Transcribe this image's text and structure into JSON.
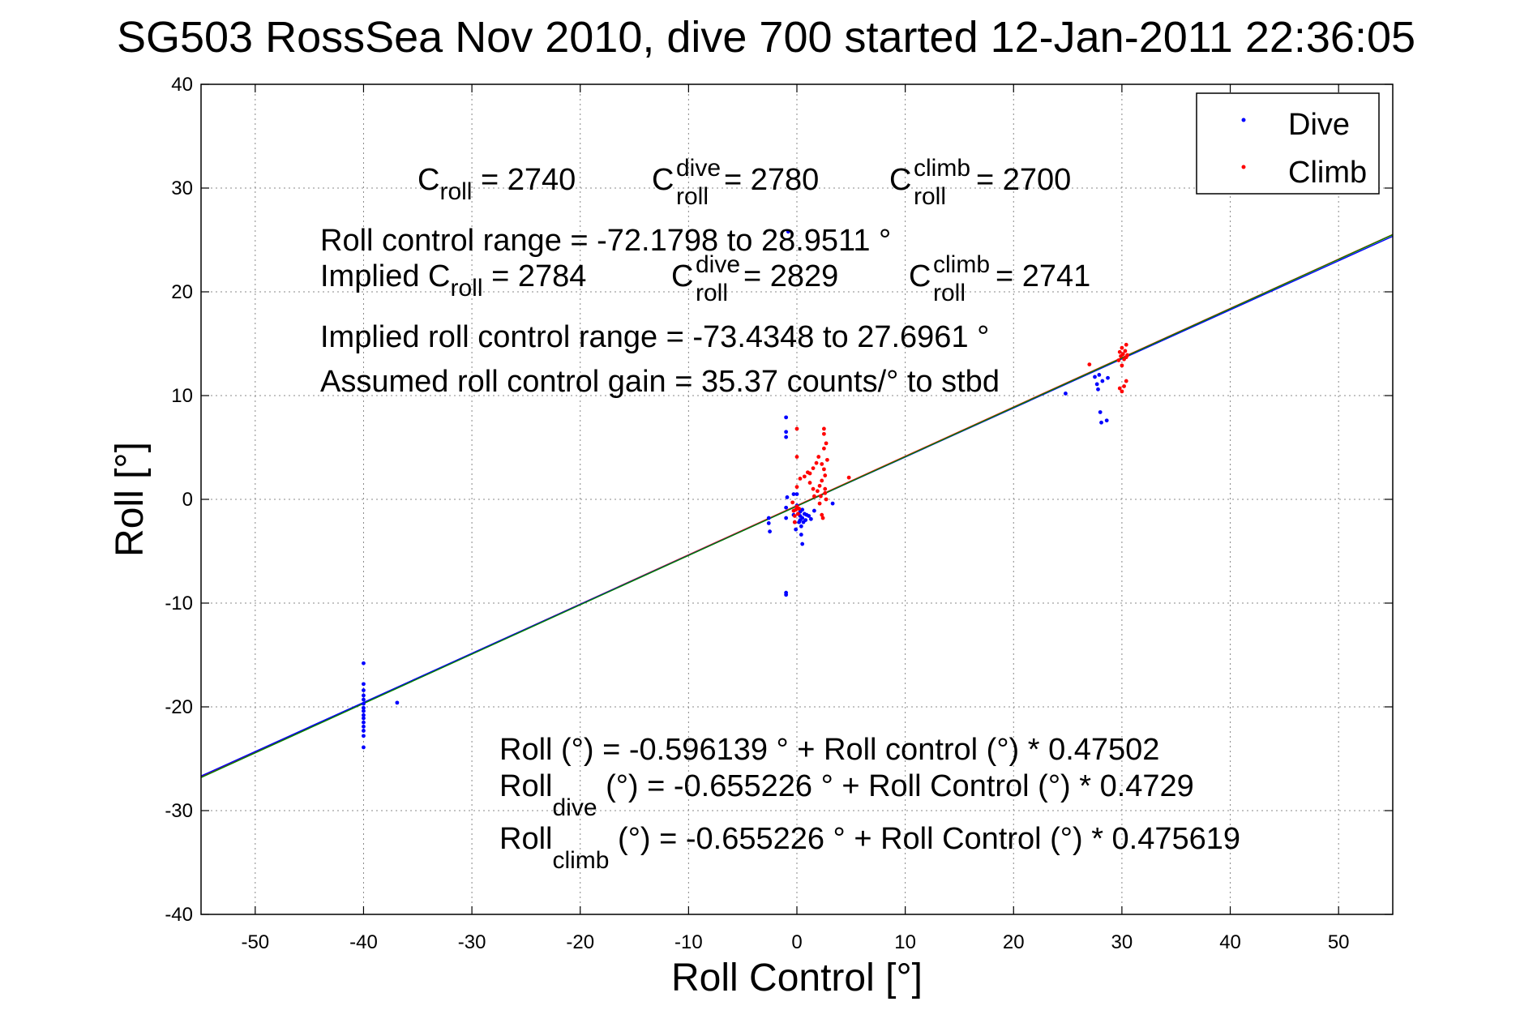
{
  "chart_data": {
    "type": "scatter",
    "title": "SG503 RossSea Nov 2010, dive 700 started 12-Jan-2011 22:36:05",
    "xlabel": "Roll Control [°]",
    "ylabel": "Roll [°]",
    "xlim": [
      -55,
      55
    ],
    "ylim": [
      -40,
      40
    ],
    "xticks": [
      -50,
      -40,
      -30,
      -20,
      -10,
      0,
      10,
      20,
      30,
      40,
      50
    ],
    "yticks": [
      -40,
      -30,
      -20,
      -10,
      0,
      10,
      20,
      30,
      40
    ],
    "xtick_labels": [
      "-50",
      "-40",
      "-30",
      "-20",
      "-10",
      "0",
      "10",
      "20",
      "30",
      "40",
      "50"
    ],
    "ytick_labels": [
      "-40",
      "-30",
      "-20",
      "-10",
      "0",
      "10",
      "20",
      "30",
      "40"
    ],
    "grid": "on (dotted)",
    "legend_position": "top-right",
    "legend": [
      "Dive",
      "Climb"
    ],
    "series": [
      {
        "name": "Dive",
        "color": "#0000ff",
        "points": [
          [
            -40,
            -15.8
          ],
          [
            -40,
            -17.8
          ],
          [
            -40,
            -18.4
          ],
          [
            -40,
            -18.9
          ],
          [
            -40,
            -19.3
          ],
          [
            -40,
            -19.7
          ],
          [
            -40,
            -20.1
          ],
          [
            -40,
            -20.4
          ],
          [
            -40,
            -20.8
          ],
          [
            -40,
            -21.1
          ],
          [
            -40,
            -21.5
          ],
          [
            -40,
            -21.9
          ],
          [
            -40,
            -22.3
          ],
          [
            -40,
            -22.8
          ],
          [
            -40,
            -23.9
          ],
          [
            -36.9,
            -19.6
          ],
          [
            -2.6,
            -1.8
          ],
          [
            -2.6,
            -2.3
          ],
          [
            -2.5,
            -3.1
          ],
          [
            -1.0,
            7.9
          ],
          [
            -1.0,
            6.5
          ],
          [
            -1.0,
            6.0
          ],
          [
            -1.0,
            -9.0
          ],
          [
            -1.0,
            -9.2
          ],
          [
            -0.9,
            0.2
          ],
          [
            -1.0,
            -0.8
          ],
          [
            -1.0,
            -1.8
          ],
          [
            -0.8,
            25.8
          ],
          [
            -0.3,
            0.5
          ],
          [
            -0.3,
            -1.5
          ],
          [
            -0.2,
            -2.2
          ],
          [
            -0.1,
            -2.9
          ],
          [
            0,
            0.5
          ],
          [
            0,
            -0.6
          ],
          [
            0.1,
            -1.4
          ],
          [
            0.2,
            -2.2
          ],
          [
            0.3,
            -2.0
          ],
          [
            0.3,
            -1.6
          ],
          [
            0.3,
            -1.2
          ],
          [
            0.4,
            -2.6
          ],
          [
            0.4,
            -3.4
          ],
          [
            0.5,
            -1.8
          ],
          [
            0.5,
            -4.3
          ],
          [
            0.5,
            -1.0
          ],
          [
            0.6,
            -2.2
          ],
          [
            0.7,
            -1.4
          ],
          [
            0.8,
            -2.0
          ],
          [
            0.9,
            -1.5
          ],
          [
            1.1,
            -1.6
          ],
          [
            1.3,
            -1.9
          ],
          [
            1.6,
            -1.1
          ],
          [
            3.3,
            -0.4
          ],
          [
            24.8,
            10.2
          ],
          [
            27.5,
            11.8
          ],
          [
            27.7,
            11.1
          ],
          [
            27.8,
            10.6
          ],
          [
            27.9,
            12.0
          ],
          [
            28.0,
            8.4
          ],
          [
            28.1,
            7.4
          ],
          [
            28.2,
            11.4
          ],
          [
            28.6,
            7.6
          ],
          [
            28.7,
            11.7
          ]
        ]
      },
      {
        "name": "Climb",
        "color": "#ff0000",
        "points": [
          [
            -0.4,
            -0.3
          ],
          [
            -0.3,
            -1.1
          ],
          [
            -0.2,
            -1.6
          ],
          [
            -0.2,
            -2.2
          ],
          [
            -0.1,
            -1.0
          ],
          [
            0.0,
            -0.7
          ],
          [
            0.1,
            -1.4
          ],
          [
            0.2,
            -0.9
          ],
          [
            0.0,
            1.2
          ],
          [
            0.0,
            4.1
          ],
          [
            0.0,
            6.8
          ],
          [
            0.3,
            2.0
          ],
          [
            0.7,
            2.2
          ],
          [
            1.0,
            2.6
          ],
          [
            1.2,
            1.6
          ],
          [
            1.2,
            2.5
          ],
          [
            1.5,
            1.0
          ],
          [
            1.5,
            3.0
          ],
          [
            1.6,
            0.3
          ],
          [
            1.8,
            3.5
          ],
          [
            1.9,
            0.8
          ],
          [
            2.0,
            4.1
          ],
          [
            2.1,
            -0.4
          ],
          [
            2.1,
            1.3
          ],
          [
            2.2,
            0.3
          ],
          [
            2.3,
            1.8
          ],
          [
            2.3,
            3.4
          ],
          [
            2.3,
            -1.5
          ],
          [
            2.4,
            -1.8
          ],
          [
            2.5,
            2.9
          ],
          [
            2.5,
            4.9
          ],
          [
            2.5,
            6.3
          ],
          [
            2.5,
            6.8
          ],
          [
            2.6,
            0.6
          ],
          [
            2.6,
            2.3
          ],
          [
            2.6,
            1.0
          ],
          [
            2.7,
            0.0
          ],
          [
            2.7,
            5.4
          ],
          [
            2.8,
            3.8
          ],
          [
            4.8,
            2.1
          ],
          [
            27.0,
            13.0
          ],
          [
            29.7,
            13.4
          ],
          [
            29.8,
            14.2
          ],
          [
            29.9,
            13.8
          ],
          [
            30.0,
            14.6
          ],
          [
            30.0,
            12.9
          ],
          [
            30.1,
            14.0
          ],
          [
            30.2,
            13.5
          ],
          [
            30.3,
            14.3
          ],
          [
            30.4,
            13.7
          ],
          [
            30.4,
            14.9
          ],
          [
            30.5,
            13.9
          ],
          [
            29.8,
            10.7
          ],
          [
            30.0,
            10.4
          ],
          [
            30.2,
            10.9
          ],
          [
            30.4,
            11.4
          ]
        ]
      }
    ],
    "fit_lines": [
      {
        "color": "#ff0000",
        "intercept": -0.596139,
        "slope": 0.47502
      },
      {
        "color": "#0000ff",
        "intercept": -0.655226,
        "slope": 0.4729
      },
      {
        "color": "#008000",
        "intercept": -0.655226,
        "slope": 0.475619
      }
    ]
  },
  "annotations": {
    "c_roll": {
      "base": "C",
      "sub": "roll",
      "value": " = 2740"
    },
    "c_roll_dive": {
      "base": "C",
      "sup": "dive",
      "sub": "roll",
      "value": " = 2780"
    },
    "c_roll_climb": {
      "base": "C",
      "sup": "climb",
      "sub": "roll",
      "value": " = 2700"
    },
    "roll_control_range": "Roll control range = -72.1798 to 28.9511 °",
    "implied_c_roll": {
      "prefix": "Implied C",
      "sub": "roll",
      "value": " = 2784"
    },
    "implied_c_roll_dive": {
      "base": "C",
      "sup": "dive",
      "sub": "roll",
      "value": " = 2829"
    },
    "implied_c_roll_climb": {
      "base": "C",
      "sup": "climb",
      "sub": "roll",
      "value": " = 2741"
    },
    "implied_range": "Implied roll control range = -73.4348 to 27.6961 °",
    "assumed_gain": "Assumed roll control gain = 35.37 counts/° to stbd",
    "fit_all": "Roll (°) = -0.596139 ° + Roll control (°) * 0.47502",
    "fit_dive": {
      "base": "Roll",
      "sub": "dive",
      "rest": " (°) = -0.655226 ° + Roll Control (°) * 0.4729"
    },
    "fit_climb": {
      "base": "Roll",
      "sub": "climb",
      "rest": " (°) = -0.655226 ° + Roll Control (°) * 0.475619"
    }
  }
}
